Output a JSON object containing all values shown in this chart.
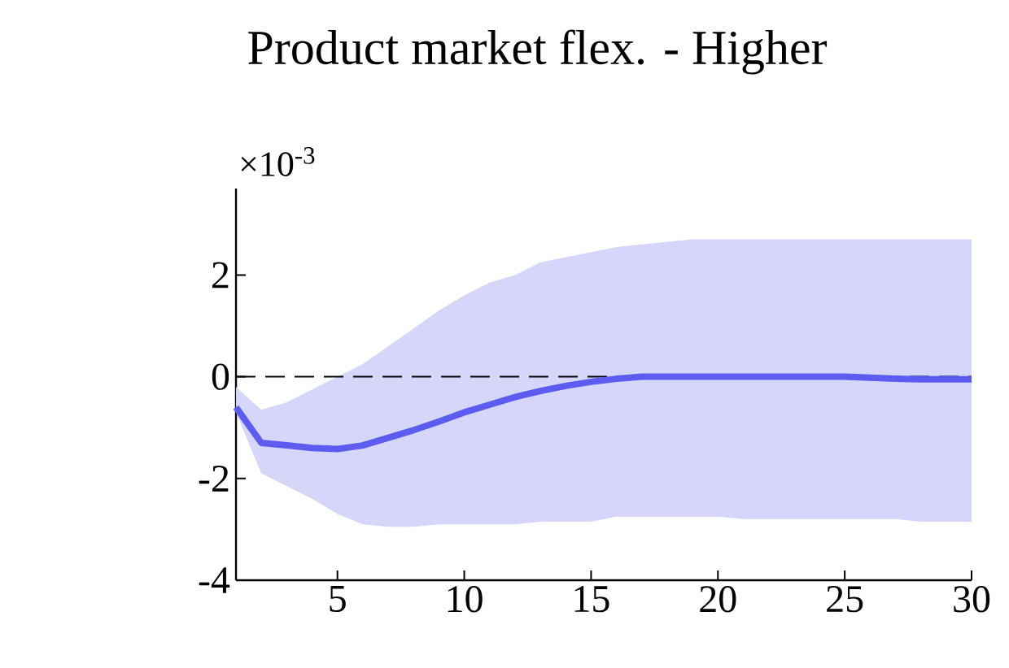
{
  "chart_data": {
    "type": "line",
    "title": "Product market flex. - Higher",
    "annotations": [
      "×10$^{-3}$"
    ],
    "x": [
      1,
      2,
      3,
      4,
      5,
      6,
      7,
      8,
      9,
      10,
      11,
      12,
      13,
      14,
      15,
      16,
      17,
      18,
      19,
      20,
      21,
      22,
      23,
      24,
      25,
      26,
      27,
      28,
      29,
      30
    ],
    "series": [
      {
        "color": "#5c5cf0",
        "values": [
          -0.6,
          -1.3,
          -1.35,
          -1.4,
          -1.42,
          -1.35,
          -1.2,
          -1.05,
          -0.88,
          -0.7,
          -0.55,
          -0.4,
          -0.28,
          -0.18,
          -0.1,
          -0.04,
          0,
          0,
          0,
          0,
          0,
          0,
          0,
          0,
          0,
          -0.02,
          -0.04,
          -0.05,
          -0.05,
          -0.05
        ],
        "lower": [
          -0.7,
          -1.9,
          -2.15,
          -2.4,
          -2.7,
          -2.9,
          -2.95,
          -2.95,
          -2.9,
          -2.9,
          -2.9,
          -2.9,
          -2.85,
          -2.85,
          -2.85,
          -2.75,
          -2.75,
          -2.75,
          -2.75,
          -2.75,
          -2.8,
          -2.8,
          -2.8,
          -2.8,
          -2.8,
          -2.8,
          -2.8,
          -2.85,
          -2.85,
          -2.85
        ],
        "upper": [
          -0.2,
          -0.65,
          -0.5,
          -0.25,
          0,
          0.25,
          0.6,
          0.95,
          1.3,
          1.6,
          1.85,
          2.0,
          2.25,
          2.35,
          2.45,
          2.55,
          2.6,
          2.65,
          2.7,
          2.7,
          2.7,
          2.7,
          2.7,
          2.7,
          2.7,
          2.7,
          2.7,
          2.7,
          2.7,
          2.7
        ]
      }
    ],
    "xlim": [
      1,
      30
    ],
    "ylim": [
      -4,
      3.7
    ],
    "xticks": [
      5,
      10,
      15,
      20,
      25,
      30
    ],
    "yticks": [
      -4,
      -2,
      0,
      2
    ],
    "ref_lines": [
      {
        "axis": "y",
        "value": 0,
        "color": "#000000",
        "line_style": "dashed"
      }
    ],
    "grid": false
  }
}
